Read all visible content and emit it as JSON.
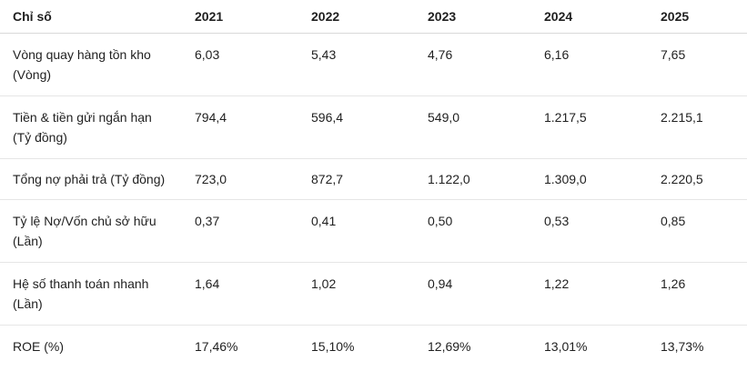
{
  "table": {
    "headers": [
      "Chỉ số",
      "2021",
      "2022",
      "2023",
      "2024",
      "2025"
    ],
    "rows": [
      {
        "label": "Vòng quay hàng tồn kho",
        "unit": "(Vòng)",
        "values": [
          "6,03",
          "5,43",
          "4,76",
          "6,16",
          "7,65"
        ]
      },
      {
        "label": "Tiền & tiền gửi ngắn hạn",
        "unit": "(Tỷ đồng)",
        "values": [
          "794,4",
          "596,4",
          "549,0",
          "1.217,5",
          "2.215,1"
        ]
      },
      {
        "label": "Tổng nợ phải trả (Tỷ đồng)",
        "unit": "",
        "values": [
          "723,0",
          "872,7",
          "1.122,0",
          "1.309,0",
          "2.220,5"
        ]
      },
      {
        "label": "Tỷ lệ Nợ/Vốn chủ sở hữu",
        "unit": "(Lần)",
        "values": [
          "0,37",
          "0,41",
          "0,50",
          "0,53",
          "0,85"
        ]
      },
      {
        "label": "Hệ số thanh toán nhanh",
        "unit": "(Lần)",
        "values": [
          "1,64",
          "1,02",
          "0,94",
          "1,22",
          "1,26"
        ]
      },
      {
        "label": "ROE (%)",
        "unit": "",
        "values": [
          "17,46%",
          "15,10%",
          "12,69%",
          "13,01%",
          "13,73%"
        ]
      }
    ]
  }
}
